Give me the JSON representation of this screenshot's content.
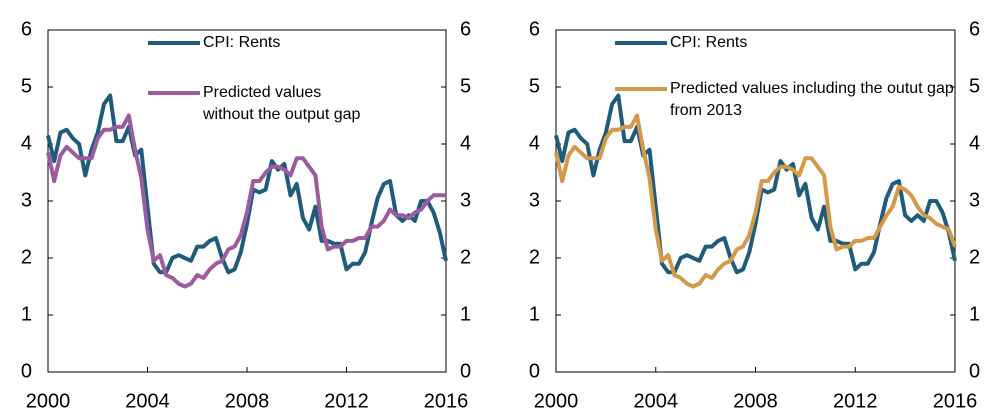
{
  "chart_data": [
    {
      "type": "line",
      "x": [
        2000,
        2000.25,
        2000.5,
        2000.75,
        2001,
        2001.25,
        2001.5,
        2001.75,
        2002,
        2002.25,
        2002.5,
        2002.75,
        2003,
        2003.25,
        2003.5,
        2003.75,
        2004,
        2004.25,
        2004.5,
        2004.75,
        2005,
        2005.25,
        2005.5,
        2005.75,
        2006,
        2006.25,
        2006.5,
        2006.75,
        2007,
        2007.25,
        2007.5,
        2007.75,
        2008,
        2008.25,
        2008.5,
        2008.75,
        2009,
        2009.25,
        2009.5,
        2009.75,
        2010,
        2010.25,
        2010.5,
        2010.75,
        2011,
        2011.25,
        2011.5,
        2011.75,
        2012,
        2012.25,
        2012.5,
        2012.75,
        2013,
        2013.25,
        2013.5,
        2013.75,
        2014,
        2014.25,
        2014.5,
        2014.75,
        2015,
        2015.25,
        2015.5,
        2015.75,
        2016
      ],
      "xlim": [
        2000,
        2016
      ],
      "xticks": [
        2000,
        2004,
        2008,
        2012,
        2016
      ],
      "ylim": [
        0,
        6
      ],
      "yticks": [
        0,
        1,
        2,
        3,
        4,
        5,
        6
      ],
      "y2lim": [
        0,
        6
      ],
      "y2ticks": [
        0,
        1,
        2,
        3,
        4,
        5,
        6
      ],
      "series": [
        {
          "name": "CPI: Rents",
          "color": "#1f5c7c",
          "values": [
            4.15,
            3.7,
            4.2,
            4.25,
            4.1,
            4.0,
            3.45,
            3.9,
            4.2,
            4.7,
            4.85,
            4.05,
            4.05,
            4.3,
            3.8,
            3.9,
            2.9,
            1.9,
            1.75,
            1.75,
            2.0,
            2.05,
            2.0,
            1.95,
            2.2,
            2.2,
            2.3,
            2.35,
            2.0,
            1.75,
            1.8,
            2.1,
            2.6,
            3.2,
            3.15,
            3.2,
            3.7,
            3.55,
            3.65,
            3.1,
            3.3,
            2.7,
            2.5,
            2.9,
            2.3,
            2.3,
            2.25,
            2.25,
            1.8,
            1.9,
            1.9,
            2.1,
            2.6,
            3.05,
            3.3,
            3.35,
            2.75,
            2.65,
            2.75,
            2.65,
            3.0,
            3.0,
            2.8,
            2.45,
            1.95
          ]
        },
        {
          "name": "Predicted values without the output gap",
          "color": "#9c5ba0",
          "values": [
            3.85,
            3.35,
            3.8,
            3.95,
            3.85,
            3.75,
            3.75,
            3.75,
            4.1,
            4.25,
            4.25,
            4.3,
            4.3,
            4.5,
            3.9,
            3.4,
            2.5,
            1.95,
            2.05,
            1.7,
            1.65,
            1.55,
            1.5,
            1.55,
            1.7,
            1.65,
            1.8,
            1.9,
            1.95,
            2.15,
            2.2,
            2.4,
            2.8,
            3.35,
            3.35,
            3.5,
            3.6,
            3.6,
            3.55,
            3.45,
            3.75,
            3.75,
            3.6,
            3.45,
            2.55,
            2.15,
            2.2,
            2.2,
            2.3,
            2.3,
            2.35,
            2.35,
            2.55,
            2.55,
            2.65,
            2.85,
            2.75,
            2.75,
            2.7,
            2.8,
            2.85,
            3.0,
            3.1,
            3.1,
            3.1
          ]
        }
      ]
    },
    {
      "type": "line",
      "x": [
        2000,
        2000.25,
        2000.5,
        2000.75,
        2001,
        2001.25,
        2001.5,
        2001.75,
        2002,
        2002.25,
        2002.5,
        2002.75,
        2003,
        2003.25,
        2003.5,
        2003.75,
        2004,
        2004.25,
        2004.5,
        2004.75,
        2005,
        2005.25,
        2005.5,
        2005.75,
        2006,
        2006.25,
        2006.5,
        2006.75,
        2007,
        2007.25,
        2007.5,
        2007.75,
        2008,
        2008.25,
        2008.5,
        2008.75,
        2009,
        2009.25,
        2009.5,
        2009.75,
        2010,
        2010.25,
        2010.5,
        2010.75,
        2011,
        2011.25,
        2011.5,
        2011.75,
        2012,
        2012.25,
        2012.5,
        2012.75,
        2013,
        2013.25,
        2013.5,
        2013.75,
        2014,
        2014.25,
        2014.5,
        2014.75,
        2015,
        2015.25,
        2015.5,
        2015.75,
        2016
      ],
      "xlim": [
        2000,
        2016
      ],
      "xticks": [
        2000,
        2004,
        2008,
        2012,
        2016
      ],
      "ylim": [
        0,
        6
      ],
      "yticks": [
        0,
        1,
        2,
        3,
        4,
        5,
        6
      ],
      "y2lim": [
        0,
        6
      ],
      "y2ticks": [
        0,
        1,
        2,
        3,
        4,
        5,
        6
      ],
      "series": [
        {
          "name": "CPI: Rents",
          "color": "#1f5c7c",
          "values": [
            4.15,
            3.7,
            4.2,
            4.25,
            4.1,
            4.0,
            3.45,
            3.9,
            4.2,
            4.7,
            4.85,
            4.05,
            4.05,
            4.3,
            3.8,
            3.9,
            2.9,
            1.9,
            1.75,
            1.75,
            2.0,
            2.05,
            2.0,
            1.95,
            2.2,
            2.2,
            2.3,
            2.35,
            2.0,
            1.75,
            1.8,
            2.1,
            2.6,
            3.2,
            3.15,
            3.2,
            3.7,
            3.55,
            3.65,
            3.1,
            3.3,
            2.7,
            2.5,
            2.9,
            2.3,
            2.3,
            2.25,
            2.25,
            1.8,
            1.9,
            1.9,
            2.1,
            2.6,
            3.05,
            3.3,
            3.35,
            2.75,
            2.65,
            2.75,
            2.65,
            3.0,
            3.0,
            2.8,
            2.45,
            1.95
          ]
        },
        {
          "name": "Predicted values including the outut gap from 2013",
          "color": "#d4994a",
          "values": [
            3.85,
            3.35,
            3.8,
            3.95,
            3.85,
            3.75,
            3.75,
            3.75,
            4.1,
            4.25,
            4.25,
            4.3,
            4.3,
            4.5,
            3.9,
            3.4,
            2.5,
            1.95,
            2.05,
            1.7,
            1.65,
            1.55,
            1.5,
            1.55,
            1.7,
            1.65,
            1.8,
            1.9,
            1.95,
            2.15,
            2.2,
            2.4,
            2.8,
            3.35,
            3.35,
            3.5,
            3.6,
            3.6,
            3.55,
            3.45,
            3.75,
            3.75,
            3.6,
            3.45,
            2.55,
            2.15,
            2.2,
            2.2,
            2.3,
            2.3,
            2.35,
            2.35,
            2.55,
            2.75,
            2.9,
            3.25,
            3.2,
            3.1,
            2.9,
            2.75,
            2.7,
            2.6,
            2.55,
            2.5,
            2.2
          ]
        }
      ]
    }
  ]
}
